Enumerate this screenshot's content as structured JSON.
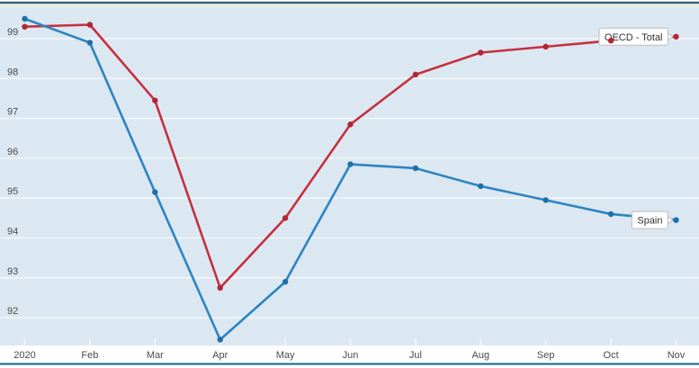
{
  "chart_data": {
    "type": "line",
    "title": "",
    "xlabel": "",
    "ylabel": "",
    "x_categories": [
      "2020",
      "Feb",
      "Mar",
      "Apr",
      "May",
      "Jun",
      "Jul",
      "Aug",
      "Sep",
      "Oct",
      "Nov"
    ],
    "y_ticks": [
      "92",
      "93",
      "94",
      "95",
      "96",
      "97",
      "98",
      "99"
    ],
    "ylim": [
      91.3,
      99.9
    ],
    "grid": "horizontal-only",
    "legend_position": "inline-labels-at-line-end",
    "series": [
      {
        "name": "OECD - Total",
        "color": "#c5303e",
        "marker_color": "#b32434",
        "values": [
          99.3,
          99.35,
          97.45,
          92.75,
          94.5,
          96.85,
          98.1,
          98.65,
          98.8,
          98.95,
          99.05
        ]
      },
      {
        "name": "Spain",
        "color": "#2b85c2",
        "marker_color": "#1f6fa8",
        "values": [
          99.5,
          98.9,
          95.15,
          91.45,
          92.9,
          95.85,
          95.75,
          95.3,
          94.95,
          94.6,
          94.45
        ]
      }
    ]
  },
  "colors": {
    "page_background": "#ffffff",
    "plot_background": "#dce8f1",
    "top_accent_strip": "#e6eee5",
    "gridline": "#f5f9fb",
    "tick_mark": "#eef4f8",
    "axis_text": "#4a4a4a",
    "top_border": "#33617e",
    "bottom_border": "#15657f",
    "label_box_bg": "#ffffff",
    "label_box_border": "#b9bfc4",
    "label_text": "#333333"
  }
}
